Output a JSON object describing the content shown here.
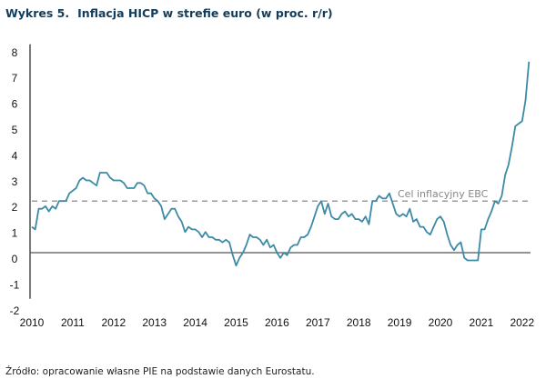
{
  "title_number": "Wykres 5.",
  "title_text": "Inflacja HICP w strefie euro (w proc. r/r)",
  "source": "Źródło: opracowanie własne PIE na podstawie danych Eurostatu.",
  "colors": {
    "line": "#3d8aa6",
    "target": "#9a9a9a",
    "axis": "#666666",
    "title": "#123c5a"
  },
  "chart_data": {
    "type": "line",
    "title": "Inflacja HICP w strefie euro (w proc. r/r)",
    "xlabel": "",
    "ylabel": "",
    "ylim": [
      -2,
      8
    ],
    "xlim": [
      2010,
      2022.25
    ],
    "yticks": [
      "-2",
      "-1",
      "0",
      "1",
      "2",
      "3",
      "4",
      "5",
      "6",
      "7",
      "8"
    ],
    "xticks": [
      "2010",
      "2011",
      "2012",
      "2013",
      "2014",
      "2015",
      "2016",
      "2017",
      "2018",
      "2019",
      "2020",
      "2021",
      "2022"
    ],
    "grid": false,
    "annotation": {
      "text": "Cel inflacyjny EBC",
      "value": 2.0
    },
    "series": [
      {
        "name": "HICP r/r",
        "start": "2010-01",
        "frequency": "monthly",
        "values": [
          1.0,
          0.9,
          1.7,
          1.7,
          1.8,
          1.6,
          1.8,
          1.7,
          2.0,
          2.0,
          2.0,
          2.3,
          2.4,
          2.5,
          2.8,
          2.9,
          2.8,
          2.8,
          2.7,
          2.6,
          3.1,
          3.1,
          3.1,
          2.9,
          2.8,
          2.8,
          2.8,
          2.7,
          2.5,
          2.5,
          2.5,
          2.7,
          2.7,
          2.6,
          2.3,
          2.3,
          2.1,
          2.0,
          1.8,
          1.3,
          1.5,
          1.7,
          1.7,
          1.4,
          1.2,
          0.8,
          1.0,
          0.9,
          0.9,
          0.8,
          0.6,
          0.8,
          0.6,
          0.6,
          0.5,
          0.5,
          0.4,
          0.5,
          0.4,
          -0.1,
          -0.5,
          -0.2,
          0.0,
          0.3,
          0.7,
          0.6,
          0.6,
          0.5,
          0.3,
          0.5,
          0.2,
          0.3,
          0.0,
          -0.2,
          0.0,
          -0.1,
          0.2,
          0.3,
          0.3,
          0.6,
          0.6,
          0.7,
          1.0,
          1.4,
          1.8,
          2.0,
          1.5,
          1.9,
          1.4,
          1.3,
          1.3,
          1.5,
          1.6,
          1.4,
          1.5,
          1.3,
          1.3,
          1.2,
          1.4,
          1.1,
          2.0,
          2.0,
          2.2,
          2.1,
          2.1,
          2.3,
          1.9,
          1.5,
          1.4,
          1.5,
          1.4,
          1.7,
          1.2,
          1.3,
          1.0,
          1.0,
          0.8,
          0.7,
          1.0,
          1.3,
          1.4,
          1.2,
          0.7,
          0.3,
          0.1,
          0.3,
          0.4,
          -0.2,
          -0.3,
          -0.3,
          -0.3,
          -0.3,
          0.9,
          0.9,
          1.3,
          1.6,
          2.0,
          1.9,
          2.2,
          3.0,
          3.4,
          4.1,
          4.9,
          5.0,
          5.1,
          5.9,
          7.4
        ]
      }
    ]
  }
}
